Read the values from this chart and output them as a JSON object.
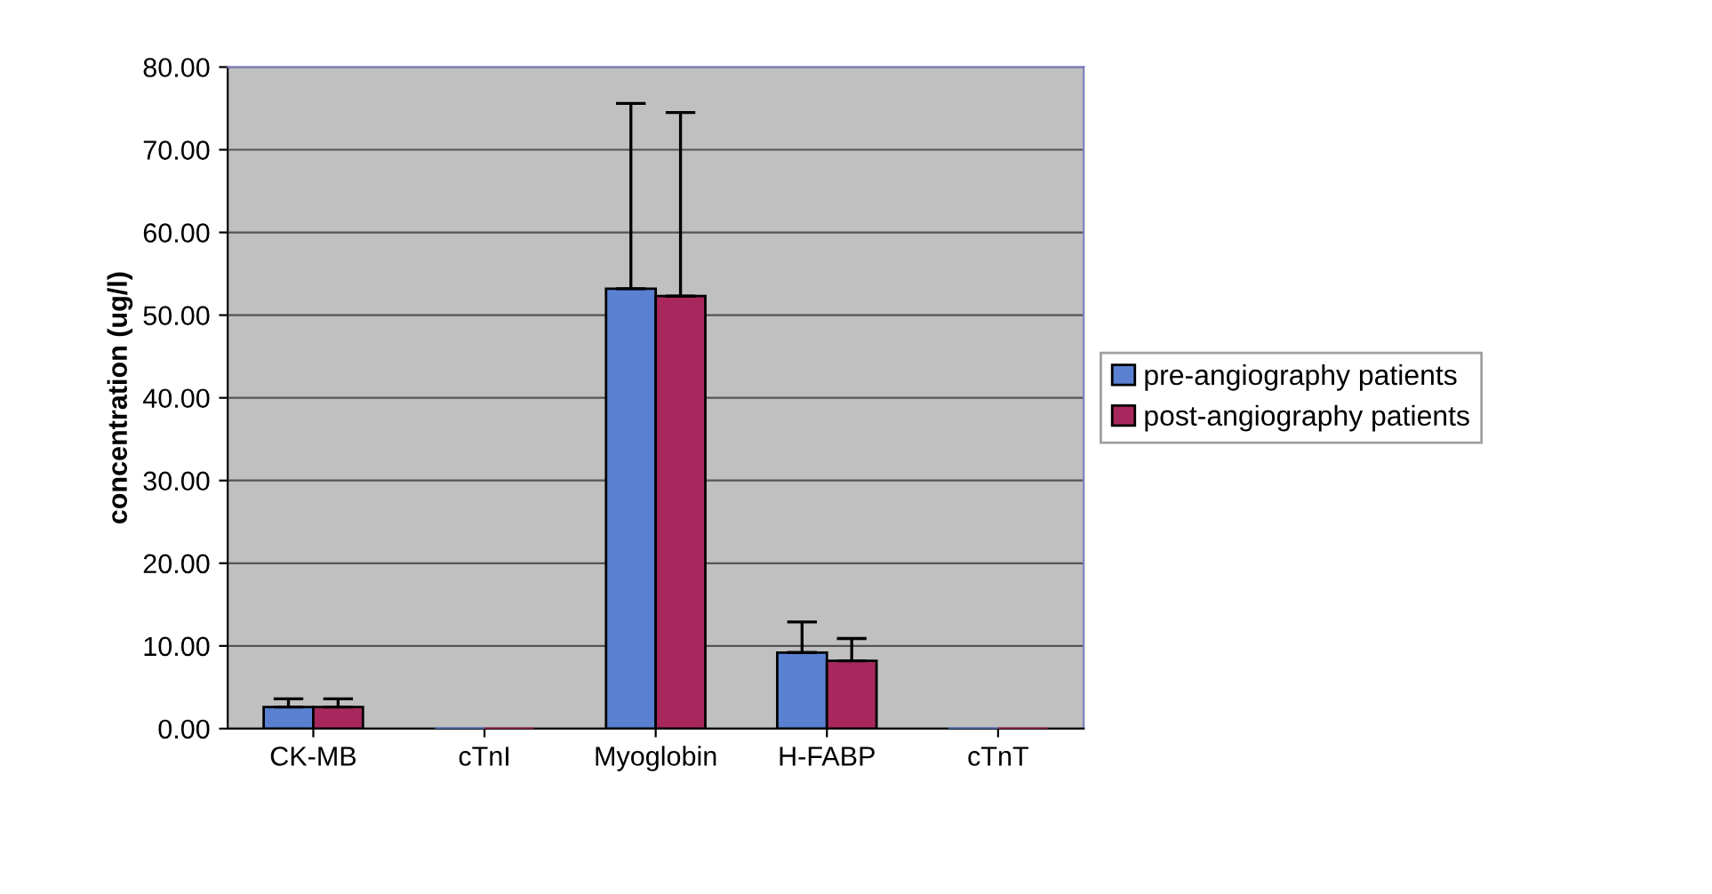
{
  "chart_data": {
    "type": "bar",
    "ylabel": "concentration (ug/l)",
    "categories": [
      "CK-MB",
      "cTnI",
      "Myoglobin",
      "H-FABP",
      "cTnT"
    ],
    "series": [
      {
        "name": "pre-angiography patients",
        "color": "#5a80d2",
        "values": [
          2.6,
          0,
          53.2,
          9.2,
          0
        ],
        "errors": [
          1.0,
          null,
          22.4,
          3.7,
          null
        ]
      },
      {
        "name": "post-angiography patients",
        "color": "#a8285e",
        "values": [
          2.6,
          0,
          52.3,
          8.2,
          0
        ],
        "errors": [
          1.0,
          null,
          22.2,
          2.7,
          null
        ]
      }
    ],
    "ylim": [
      0,
      80
    ],
    "yticks": [
      {
        "value": 0,
        "label": "0.00"
      },
      {
        "value": 10,
        "label": "10.00"
      },
      {
        "value": 20,
        "label": "20.00"
      },
      {
        "value": 30,
        "label": "30.00"
      },
      {
        "value": 40,
        "label": "40.00"
      },
      {
        "value": 50,
        "label": "50.00"
      },
      {
        "value": 60,
        "label": "60.00"
      },
      {
        "value": 70,
        "label": "70.00"
      },
      {
        "value": 80,
        "label": "80.00"
      }
    ],
    "grid": "y",
    "legend": "right"
  }
}
